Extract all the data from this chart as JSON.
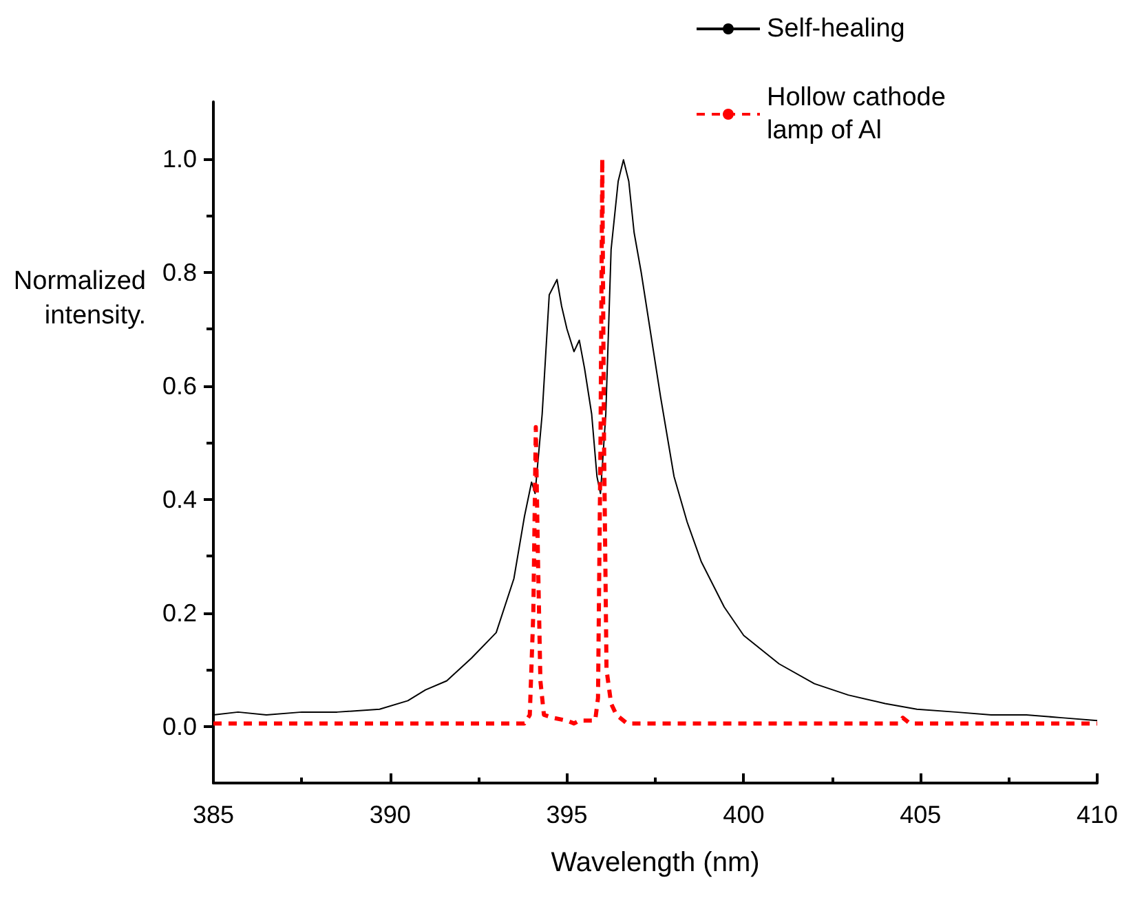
{
  "chart_data": {
    "type": "line",
    "xlabel": "Wavelength (nm)",
    "ylabel": "Normalized intensity.",
    "xlim": [
      385,
      410
    ],
    "xticks": [
      385,
      390,
      395,
      400,
      405,
      410
    ],
    "ylim": [
      -0.1,
      1.1
    ],
    "yticks": [
      {
        "value": 0,
        "label": "0.0"
      },
      {
        "value": 0.2,
        "label": "0.2"
      },
      {
        "value": 0.4,
        "label": "0.4"
      },
      {
        "value": 0.6,
        "label": "0.6"
      },
      {
        "value": 0.8,
        "label": "0.8"
      },
      {
        "value": 1,
        "label": "1.0"
      }
    ],
    "grid": false,
    "legend": "top right",
    "marker": "none",
    "series": [
      {
        "name": "Self-healing",
        "color": "#000000",
        "line_style": "solid",
        "x": [
          385,
          385.7,
          386.5,
          387.5,
          388.5,
          389.7,
          390.5,
          391,
          391.6,
          392.3,
          393,
          393.5,
          393.8,
          394,
          394.1,
          394.3,
          394.5,
          394.72,
          394.85,
          395,
          395.2,
          395.35,
          395.5,
          395.7,
          395.85,
          395.95,
          396.1,
          396.25,
          396.45,
          396.6,
          396.75,
          396.9,
          397.1,
          397.4,
          397.65,
          398.03,
          398.4,
          398.8,
          399.45,
          400,
          401,
          402,
          402.96,
          404,
          404.9,
          406,
          407,
          408,
          409,
          410
        ],
        "values": [
          0.02,
          0.025,
          0.02,
          0.025,
          0.025,
          0.03,
          0.045,
          0.064,
          0.08,
          0.12,
          0.165,
          0.26,
          0.37,
          0.43,
          0.41,
          0.55,
          0.76,
          0.787,
          0.74,
          0.7,
          0.66,
          0.68,
          0.63,
          0.55,
          0.44,
          0.41,
          0.55,
          0.84,
          0.96,
          0.998,
          0.96,
          0.87,
          0.8,
          0.68,
          0.58,
          0.44,
          0.36,
          0.29,
          0.21,
          0.16,
          0.11,
          0.075,
          0.055,
          0.04,
          0.03,
          0.025,
          0.02,
          0.02,
          0.015,
          0.01
        ]
      },
      {
        "name": "Hollow cathode lamp of Al",
        "color": "#ff0000",
        "line_style": "dashed",
        "x": [
          385,
          389,
          390,
          393.8,
          393.95,
          394.05,
          394.12,
          394.18,
          394.25,
          394.35,
          394.6,
          395,
          395.2,
          395.35,
          395.8,
          395.88,
          395.95,
          396,
          396.05,
          396.12,
          396.25,
          396.4,
          396.7,
          404.4,
          404.5,
          404.7,
          410
        ],
        "values": [
          0.005,
          0.005,
          0.005,
          0.005,
          0.02,
          0.2,
          0.527,
          0.3,
          0.08,
          0.02,
          0.015,
          0.01,
          0.005,
          0.01,
          0.01,
          0.05,
          0.5,
          1.0,
          0.5,
          0.1,
          0.04,
          0.02,
          0.005,
          0.005,
          0.015,
          0.005,
          0.005
        ]
      }
    ]
  }
}
